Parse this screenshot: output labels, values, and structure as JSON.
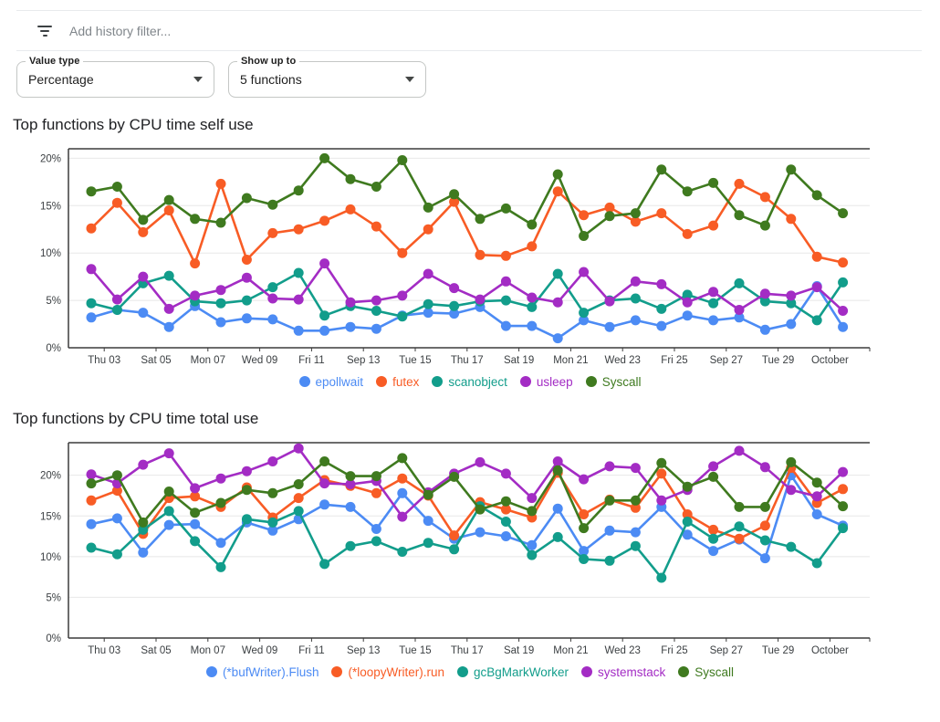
{
  "filter_bar": {
    "icon": "filter-list-icon",
    "placeholder": "Add history filter..."
  },
  "controls": {
    "value_type": {
      "label": "Value type",
      "value": "Percentage"
    },
    "show_up_to": {
      "label": "Show up to",
      "value": "5 functions"
    }
  },
  "palette": {
    "axis": "#3c3c3c",
    "grid": "#e8e8e8",
    "tick_text": "#3c4043"
  },
  "chart_data": [
    {
      "type": "line",
      "title": "Top functions by CPU time self use",
      "grid": true,
      "legend_position": "bottom",
      "y_tick_labels": [
        "0%",
        "5%",
        "10%",
        "15%",
        "20%"
      ],
      "y_tick_values": [
        0,
        5,
        10,
        15,
        20
      ],
      "ylim": [
        0,
        21
      ],
      "x_tick_labels": [
        "Thu 03",
        "Sat 05",
        "Mon 07",
        "Wed 09",
        "Fri 11",
        "Sep 13",
        "Tue 15",
        "Thu 17",
        "Sat 19",
        "Mon 21",
        "Wed 23",
        "Fri 25",
        "Sep 27",
        "Tue 29",
        "October"
      ],
      "series": [
        {
          "name": "epollwait",
          "color": "#4C8BF4",
          "values": [
            3.2,
            4.0,
            3.7,
            2.2,
            4.4,
            2.7,
            3.1,
            3.0,
            1.8,
            1.8,
            2.2,
            2.0,
            3.4,
            3.7,
            3.6,
            4.3,
            2.3,
            2.3,
            1.0,
            2.9,
            2.2,
            2.9,
            2.3,
            3.4,
            2.9,
            3.2,
            1.9,
            2.5,
            6.5,
            2.2
          ]
        },
        {
          "name": "futex",
          "color": "#F85C25",
          "values": [
            12.6,
            15.3,
            12.2,
            14.5,
            8.9,
            17.3,
            9.3,
            12.1,
            12.5,
            13.4,
            14.6,
            12.8,
            10.0,
            12.5,
            15.4,
            9.8,
            9.7,
            10.7,
            16.5,
            14.0,
            14.8,
            13.3,
            14.2,
            12.0,
            12.9,
            17.3,
            15.9,
            13.6,
            9.6,
            9.0
          ]
        },
        {
          "name": "scanobject",
          "color": "#129D8B",
          "values": [
            4.7,
            4.0,
            6.8,
            7.6,
            4.9,
            4.7,
            5.0,
            6.4,
            7.9,
            3.4,
            4.4,
            3.9,
            3.3,
            4.6,
            4.4,
            4.9,
            5.0,
            4.3,
            7.8,
            3.7,
            5.0,
            5.2,
            4.1,
            5.6,
            4.7,
            6.8,
            4.9,
            4.7,
            2.9,
            6.9
          ]
        },
        {
          "name": "usleep",
          "color": "#A32CC4",
          "values": [
            8.3,
            5.1,
            7.5,
            4.1,
            5.5,
            6.1,
            7.4,
            5.2,
            5.1,
            8.9,
            4.8,
            5.0,
            5.5,
            7.8,
            6.3,
            5.1,
            7.0,
            5.3,
            4.8,
            8.0,
            4.9,
            7.0,
            6.7,
            4.8,
            5.9,
            4.0,
            5.7,
            5.5,
            6.4,
            3.9
          ]
        },
        {
          "name": "Syscall",
          "color": "#3F7A1F",
          "values": [
            16.5,
            17.0,
            13.5,
            15.6,
            13.6,
            13.2,
            15.8,
            15.1,
            16.6,
            20.0,
            17.8,
            17.0,
            19.8,
            14.8,
            16.2,
            13.6,
            14.7,
            13.0,
            18.3,
            11.8,
            13.9,
            14.2,
            18.8,
            16.5,
            17.4,
            14.0,
            12.9,
            18.8,
            16.1,
            14.2
          ]
        }
      ]
    },
    {
      "type": "line",
      "title": "Top functions by CPU time total use",
      "grid": true,
      "legend_position": "bottom",
      "y_tick_labels": [
        "0%",
        "5%",
        "10%",
        "15%",
        "20%"
      ],
      "y_tick_values": [
        0,
        5,
        10,
        15,
        20
      ],
      "ylim": [
        0,
        24
      ],
      "x_tick_labels": [
        "Thu 03",
        "Sat 05",
        "Mon 07",
        "Wed 09",
        "Fri 11",
        "Sep 13",
        "Tue 15",
        "Thu 17",
        "Sat 19",
        "Mon 21",
        "Wed 23",
        "Fri 25",
        "Sep 27",
        "Tue 29",
        "October"
      ],
      "series": [
        {
          "name": "(*bufWriter).Flush",
          "color": "#4C8BF4",
          "values": [
            14.0,
            14.7,
            10.5,
            13.9,
            14.0,
            11.7,
            14.2,
            13.2,
            14.6,
            16.4,
            16.1,
            13.4,
            17.8,
            14.4,
            12.2,
            13.0,
            12.5,
            11.4,
            15.9,
            10.7,
            13.2,
            13.0,
            16.1,
            12.7,
            10.7,
            12.1,
            9.8,
            20.0,
            15.2,
            13.8
          ]
        },
        {
          "name": "(*loopyWriter).run",
          "color": "#F85C25",
          "values": [
            16.9,
            18.1,
            12.8,
            17.2,
            17.4,
            16.1,
            18.5,
            14.8,
            17.2,
            19.4,
            18.7,
            17.8,
            19.6,
            17.5,
            12.6,
            16.7,
            15.8,
            14.8,
            20.3,
            15.2,
            17.0,
            16.0,
            20.2,
            15.2,
            13.3,
            12.2,
            13.8,
            20.9,
            16.6,
            18.3
          ]
        },
        {
          "name": "gcBgMarkWorker",
          "color": "#129D8B",
          "values": [
            11.1,
            10.3,
            13.3,
            15.6,
            11.9,
            8.7,
            14.6,
            14.2,
            15.6,
            9.1,
            11.3,
            11.9,
            10.6,
            11.7,
            10.9,
            16.2,
            14.3,
            10.2,
            12.4,
            9.7,
            9.5,
            11.3,
            7.4,
            14.3,
            12.2,
            13.7,
            12.0,
            11.2,
            9.2,
            13.5
          ]
        },
        {
          "name": "systemstack",
          "color": "#A32CC4",
          "values": [
            20.1,
            19.0,
            21.3,
            22.7,
            18.4,
            19.6,
            20.5,
            21.7,
            23.3,
            19.0,
            18.9,
            19.3,
            14.9,
            17.9,
            20.2,
            21.6,
            20.2,
            17.2,
            21.7,
            19.5,
            21.1,
            20.9,
            16.9,
            18.2,
            21.1,
            23.0,
            21.0,
            18.2,
            17.4,
            20.4
          ]
        },
        {
          "name": "Syscall",
          "color": "#3F7A1F",
          "values": [
            19.0,
            20.0,
            14.2,
            18.0,
            15.4,
            16.6,
            18.2,
            17.8,
            18.9,
            21.7,
            19.9,
            19.9,
            22.1,
            17.6,
            19.8,
            15.8,
            16.8,
            15.6,
            20.6,
            13.5,
            16.9,
            16.9,
            21.5,
            18.6,
            19.8,
            16.1,
            16.1,
            21.6,
            19.1,
            16.2
          ]
        }
      ]
    }
  ]
}
